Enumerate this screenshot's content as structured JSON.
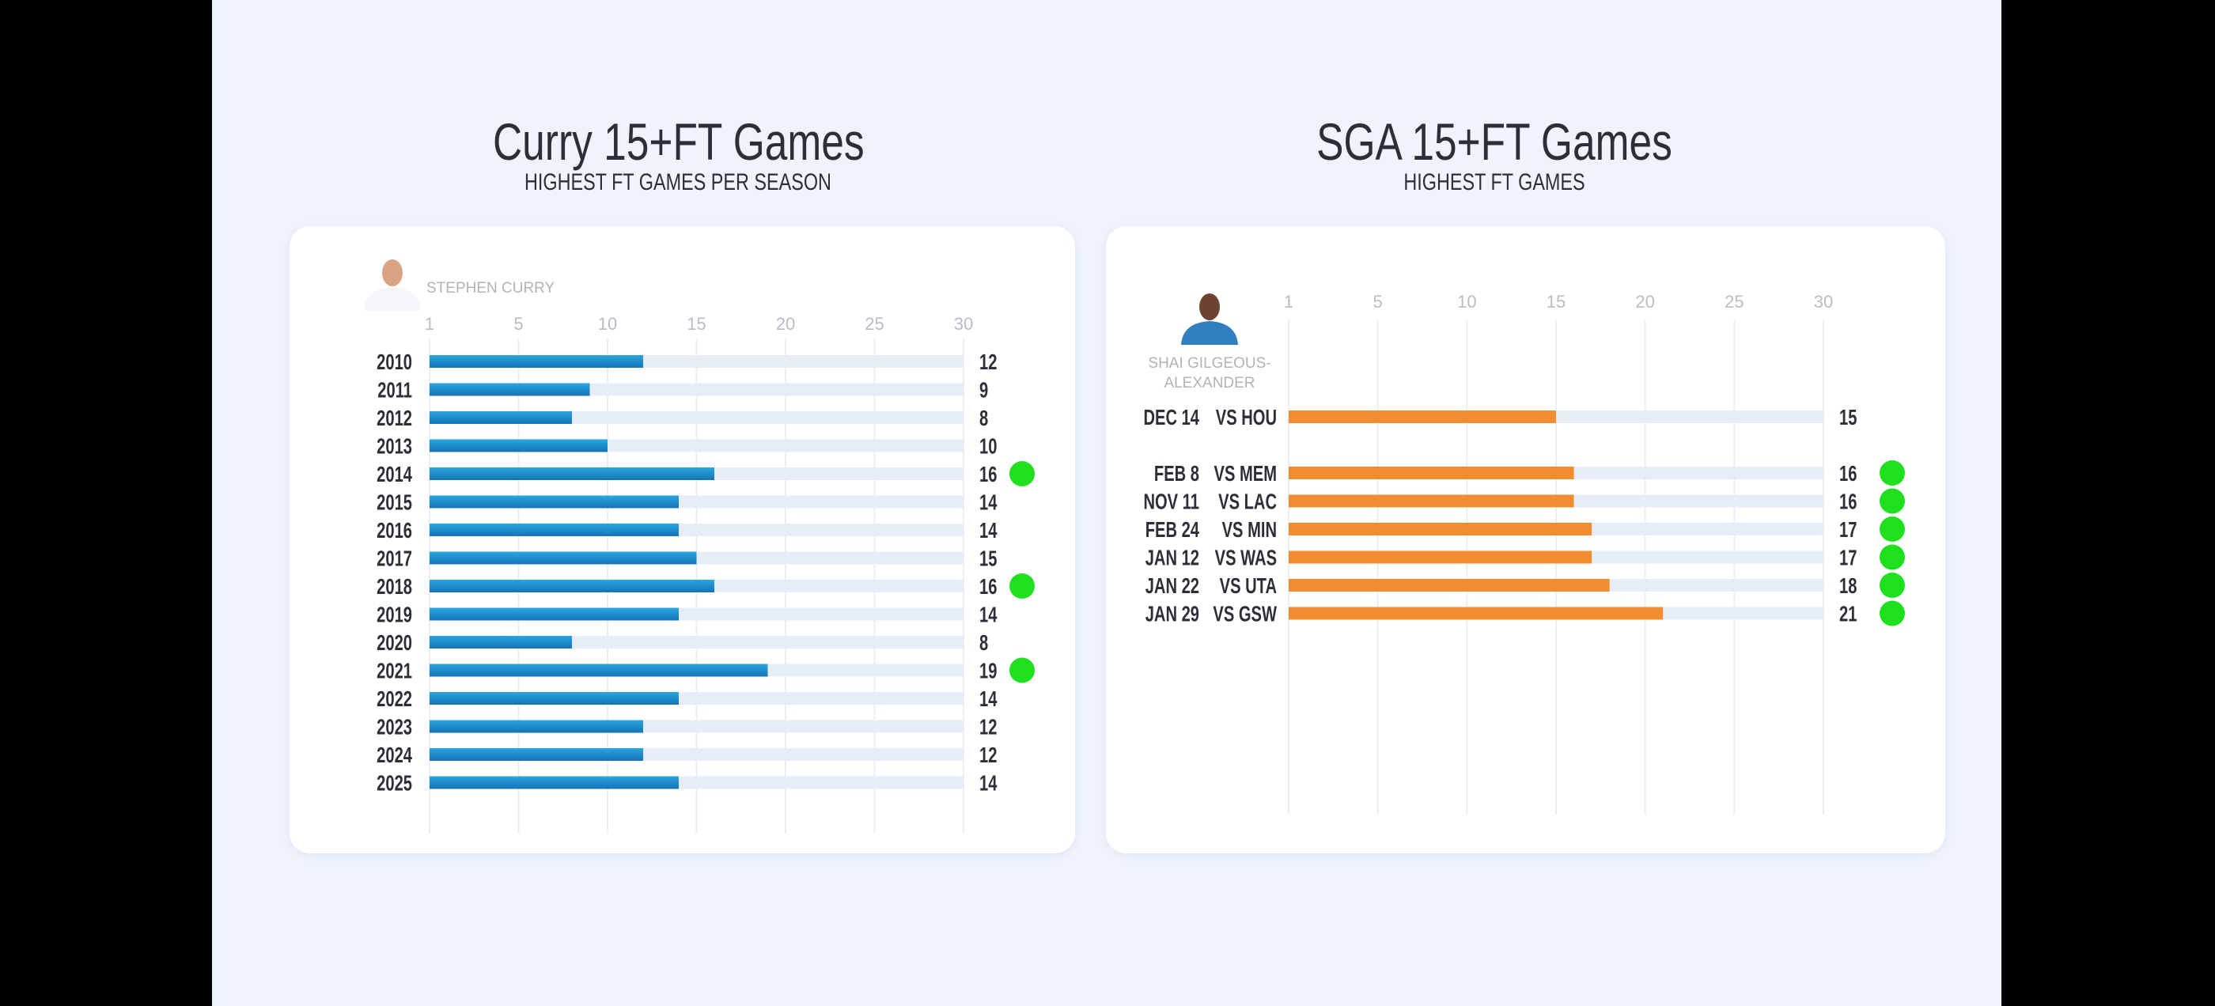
{
  "colors": {
    "background": "#eef3fc",
    "bar_blue": "#1a8ccc",
    "bar_orange": "#f28c30",
    "track": "#e7edf6",
    "highlight": "#1fe01f",
    "text": "#2c2f36"
  },
  "chart_data": [
    {
      "type": "bar",
      "title": "Curry 15+FT Games",
      "subtitle": "HIGHEST FT GAMES PER SEASON",
      "player": "STEPHEN CURRY",
      "xlim": [
        0,
        30
      ],
      "xticks": [
        "1",
        "5",
        "10",
        "15",
        "20",
        "25",
        "30"
      ],
      "xtick_values": [
        0,
        5,
        10,
        15,
        20,
        25,
        30
      ],
      "grid": true,
      "categories": [
        "2010",
        "2011",
        "2012",
        "2013",
        "2014",
        "2015",
        "2016",
        "2017",
        "2018",
        "2019",
        "2020",
        "2021",
        "2022",
        "2023",
        "2024",
        "2025"
      ],
      "values": [
        12,
        9,
        8,
        10,
        16,
        14,
        14,
        15,
        16,
        14,
        8,
        19,
        14,
        12,
        12,
        14
      ],
      "highlighted": [
        false,
        false,
        false,
        false,
        true,
        false,
        false,
        false,
        true,
        false,
        false,
        true,
        false,
        false,
        false,
        false
      ]
    },
    {
      "type": "bar",
      "title": "SGA 15+FT Games",
      "subtitle": "HIGHEST FT GAMES",
      "player_line1": "SHAI GILGEOUS-",
      "player_line2": "ALEXANDER",
      "xlim": [
        0,
        30
      ],
      "xticks": [
        "1",
        "5",
        "10",
        "15",
        "20",
        "25",
        "30"
      ],
      "xtick_values": [
        0,
        5,
        10,
        15,
        20,
        25,
        30
      ],
      "grid": true,
      "dates": [
        "DEC 14",
        "FEB 8",
        "NOV 11",
        "FEB 24",
        "JAN 12",
        "JAN 22",
        "JAN 29"
      ],
      "opponents": [
        "VS HOU",
        "VS MEM",
        "VS LAC",
        "VS MIN",
        "VS WAS",
        "VS UTA",
        "VS GSW"
      ],
      "values": [
        15,
        16,
        16,
        17,
        17,
        18,
        21
      ],
      "highlighted": [
        false,
        true,
        true,
        true,
        true,
        true,
        true
      ]
    }
  ]
}
